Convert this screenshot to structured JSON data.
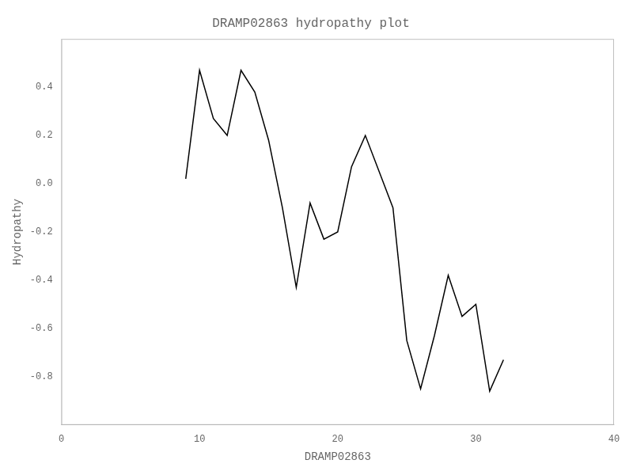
{
  "chart_data": {
    "type": "line",
    "title": "DRAMP02863 hydropathy plot",
    "x_label": "DRAMP02863",
    "y_label": "Hydropathy",
    "x": [
      9,
      10,
      11,
      12,
      13,
      14,
      15,
      16,
      17,
      18,
      19,
      20,
      21,
      22,
      23,
      24,
      25,
      26,
      27,
      28,
      29,
      30,
      31,
      32
    ],
    "values": [
      0.02,
      0.47,
      0.27,
      0.2,
      0.47,
      0.38,
      0.18,
      -0.1,
      -0.43,
      -0.08,
      -0.23,
      -0.2,
      0.07,
      0.2,
      0.05,
      -0.1,
      -0.65,
      -0.85,
      -0.63,
      -0.38,
      -0.55,
      -0.5,
      -0.86,
      -0.73
    ],
    "color": "#000000",
    "xlim": [
      0,
      40
    ],
    "ylim": [
      -1.0,
      0.6
    ],
    "xticks": [
      0,
      10,
      20,
      30,
      40
    ],
    "yticks": [
      -0.8,
      -0.6,
      -0.4,
      -0.2,
      {
        "value": 0,
        "label": "0.0"
      },
      0.2,
      0.4
    ],
    "grid": false
  }
}
